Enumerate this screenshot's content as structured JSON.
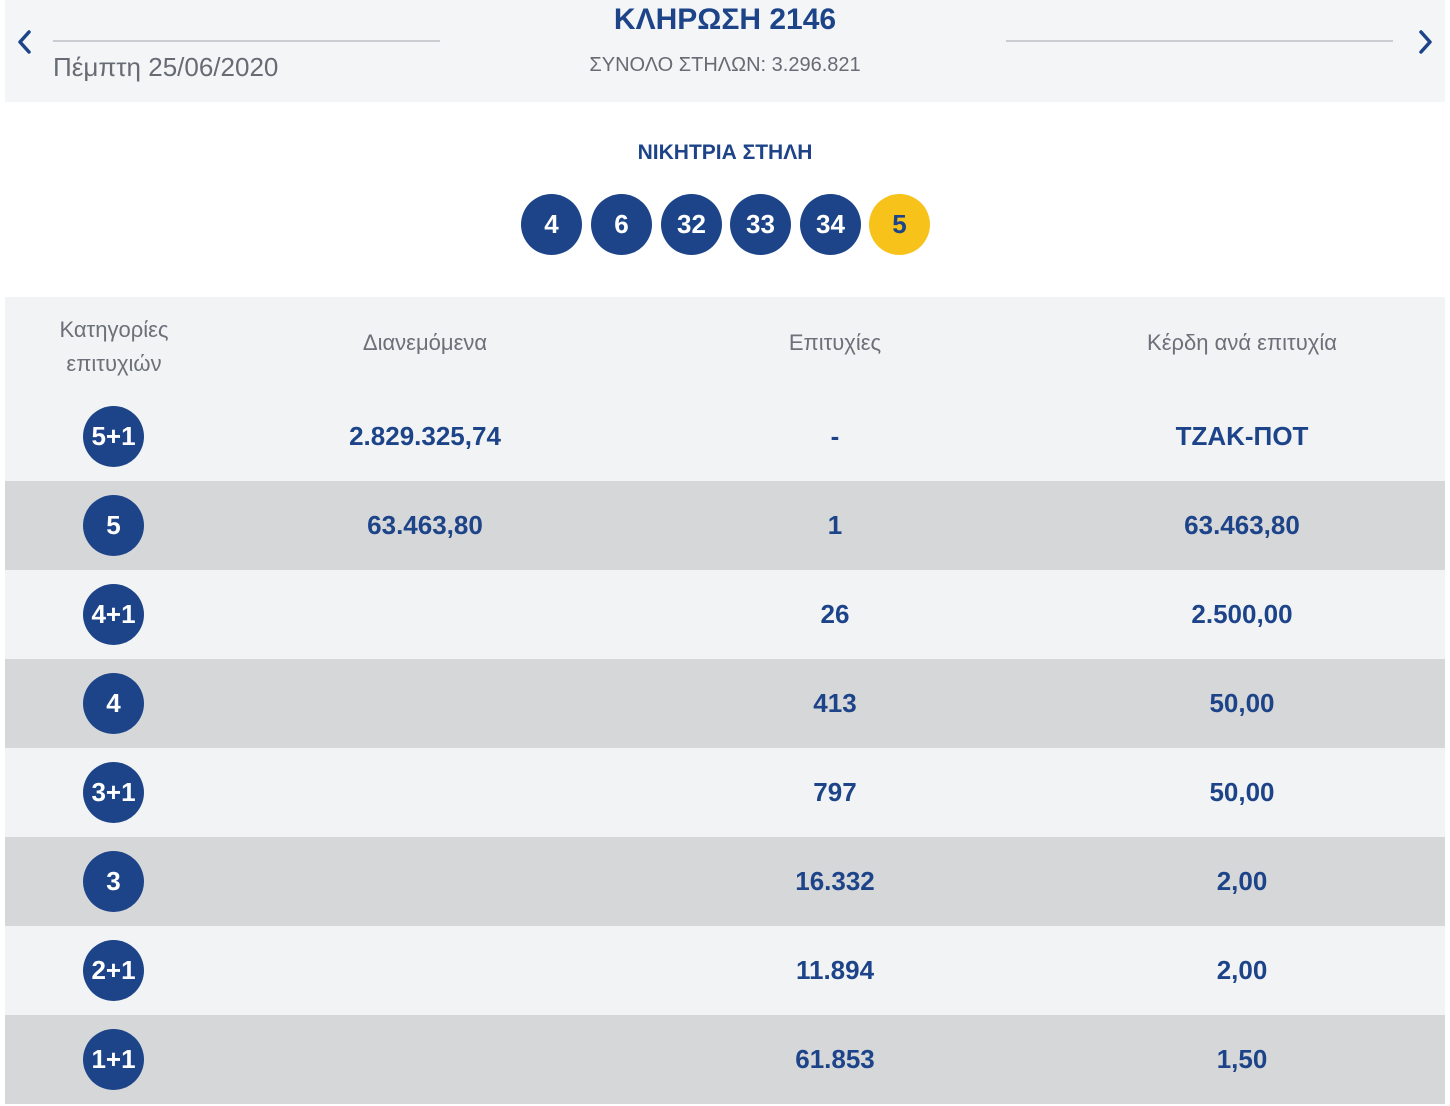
{
  "header": {
    "date": "Πέμπτη 25/06/2020",
    "draw_title": "ΚΛΗΡΩΣΗ 2146",
    "total_columns": "ΣΥΝΟΛΟ ΣΤΗΛΩΝ: 3.296.821",
    "prev_icon": "chevron-left-icon",
    "next_icon": "chevron-right-icon"
  },
  "winning": {
    "title": "ΝΙΚΗΤΡΙΑ ΣΤΗΛΗ",
    "numbers": [
      "4",
      "6",
      "32",
      "33",
      "34"
    ],
    "joker": "5"
  },
  "table": {
    "headers": {
      "category": "Κατηγορίες επιτυχιών",
      "distributed": "Διανεμόμενα",
      "winners": "Επιτυχίες",
      "prize": "Κέρδη ανά επιτυχία"
    },
    "rows": [
      {
        "category": "5+1",
        "distributed": "2.829.325,74",
        "winners": "-",
        "prize": "ΤΖΑΚ-ΠΟΤ"
      },
      {
        "category": "5",
        "distributed": "63.463,80",
        "winners": "1",
        "prize": "63.463,80"
      },
      {
        "category": "4+1",
        "distributed": "",
        "winners": "26",
        "prize": "2.500,00"
      },
      {
        "category": "4",
        "distributed": "",
        "winners": "413",
        "prize": "50,00"
      },
      {
        "category": "3+1",
        "distributed": "",
        "winners": "797",
        "prize": "50,00"
      },
      {
        "category": "3",
        "distributed": "",
        "winners": "16.332",
        "prize": "2,00"
      },
      {
        "category": "2+1",
        "distributed": "",
        "winners": "11.894",
        "prize": "2,00"
      },
      {
        "category": "1+1",
        "distributed": "",
        "winners": "61.853",
        "prize": "1,50"
      }
    ]
  },
  "colors": {
    "primary": "#1d4489",
    "joker": "#f7c21a",
    "row_light": "#f2f3f5",
    "row_dark": "#d6d7d9",
    "muted_text": "#666b74"
  }
}
